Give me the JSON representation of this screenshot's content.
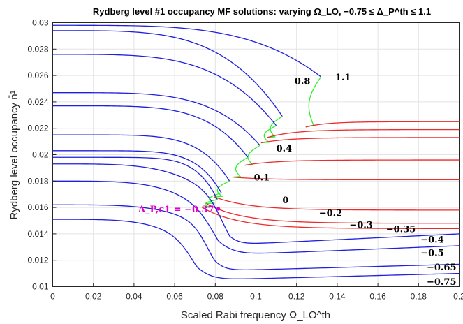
{
  "chart_data": {
    "type": "line",
    "title": "Rydberg level #1 occupancy MF solutions: varying Ω_LO, −0.75 ≤ Δ_P^th ≤ 1.1",
    "xlabel": "Scaled Rabi frequency Ω_LO^th",
    "ylabel": "Rydberg level occupancy n̄¹",
    "xlim": [
      0,
      0.2
    ],
    "ylim": [
      0.01,
      0.03
    ],
    "xticks": [
      0,
      0.02,
      0.04,
      0.06,
      0.08,
      0.1,
      0.12,
      0.14,
      0.16,
      0.18,
      0.2
    ],
    "yticks": [
      0.01,
      0.012,
      0.014,
      0.016,
      0.018,
      0.02,
      0.022,
      0.024,
      0.026,
      0.028,
      0.03
    ],
    "xtick_labels": [
      "0",
      "0.02",
      "0.04",
      "0.06",
      "0.08",
      "0.1",
      "0.12",
      "0.14",
      "0.16",
      "0.18",
      "0.2"
    ],
    "ytick_labels": [
      "0.01",
      "0.012",
      "0.014",
      "0.016",
      "0.018",
      "0.02",
      "0.022",
      "0.024",
      "0.026",
      "0.028",
      "0.03"
    ],
    "grid": true,
    "colors": {
      "upper_branch": "#1f1fe0",
      "lower_branch": "#ee2b2b",
      "unstable_branch": "#2ef02e",
      "critical": "#e000c8"
    },
    "series": [
      {
        "name": "1.1",
        "y0": 0.0298,
        "xturn": 0.132,
        "yturn": 0.0259,
        "ylow": 0.0221,
        "yfinal": 0.0225,
        "sharp": 4
      },
      {
        "name": "0.8",
        "y0": 0.0294,
        "xturn": 0.113,
        "yturn": 0.0229,
        "ylow": 0.0213,
        "yfinal": 0.0219,
        "sharp": 4
      },
      {
        "name": "0.4",
        "y0": 0.0276,
        "xturn": 0.11,
        "yturn": 0.0222,
        "ylow": 0.0209,
        "yfinal": 0.0213,
        "sharp": 4
      },
      {
        "name": "0.1",
        "y0": 0.0247,
        "xturn": 0.102,
        "yturn": 0.0207,
        "ylow": 0.0192,
        "yfinal": 0.0196,
        "sharp": 4.5
      },
      {
        "name": "0",
        "y0": 0.0237,
        "xturn": 0.096,
        "yturn": 0.0198,
        "ylow": 0.0183,
        "yfinal": 0.0181,
        "sharp": 5
      },
      {
        "name": "−0.2",
        "y0": 0.0215,
        "xturn": 0.087,
        "yturn": 0.018,
        "ylow": 0.0168,
        "yfinal": 0.0158,
        "sharp": 6
      },
      {
        "name": "−0.3",
        "y0": 0.0203,
        "xturn": 0.083,
        "yturn": 0.0171,
        "ylow": 0.0163,
        "yfinal": 0.0148,
        "sharp": 7
      },
      {
        "name": "−0.35",
        "y0": 0.0198,
        "xturn": 0.081,
        "yturn": 0.0166,
        "ylow": 0.016,
        "yfinal": 0.0144,
        "sharp": 8
      },
      {
        "name": "−0.4",
        "y0": 0.0193,
        "xturn": 0.081,
        "yturn": 0.0158,
        "xend_drop": 0.085,
        "yfinal": 0.014
      },
      {
        "name": "−0.5",
        "y0": 0.018,
        "xturn": 0.076,
        "yturn": 0.015,
        "xend_drop": 0.083,
        "yfinal": 0.0131
      },
      {
        "name": "−0.65",
        "y0": 0.0162,
        "xturn": 0.074,
        "yturn": 0.0141,
        "xend_drop": 0.078,
        "yfinal": 0.0117
      },
      {
        "name": "−0.75",
        "y0": 0.0151,
        "xturn": 0.066,
        "yturn": 0.013,
        "xend_drop": 0.072,
        "yfinal": 0.011
      }
    ],
    "annotations": [
      {
        "text": "1.1",
        "x": 0.139,
        "y": 0.0259
      },
      {
        "text": "0.8",
        "x": 0.119,
        "y": 0.0256
      },
      {
        "text": "0.4",
        "x": 0.11,
        "y": 0.0205
      },
      {
        "text": "0.1",
        "x": 0.099,
        "y": 0.0183
      },
      {
        "text": "0",
        "x": 0.113,
        "y": 0.0166
      },
      {
        "text": "−0.2",
        "x": 0.131,
        "y": 0.0156
      },
      {
        "text": "−0.3",
        "x": 0.146,
        "y": 0.0147
      },
      {
        "text": "−0.35",
        "x": 0.164,
        "y": 0.0144
      },
      {
        "text": "−0.4",
        "x": 0.181,
        "y": 0.0136
      },
      {
        "text": "−0.5",
        "x": 0.181,
        "y": 0.0126
      },
      {
        "text": "−0.65",
        "x": 0.184,
        "y": 0.0115
      },
      {
        "text": "−0.75",
        "x": 0.184,
        "y": 0.0104
      }
    ],
    "critical_point": {
      "label": "Δ_P,c1 = −0.37",
      "x": 0.0815,
      "y": 0.0159
    }
  }
}
